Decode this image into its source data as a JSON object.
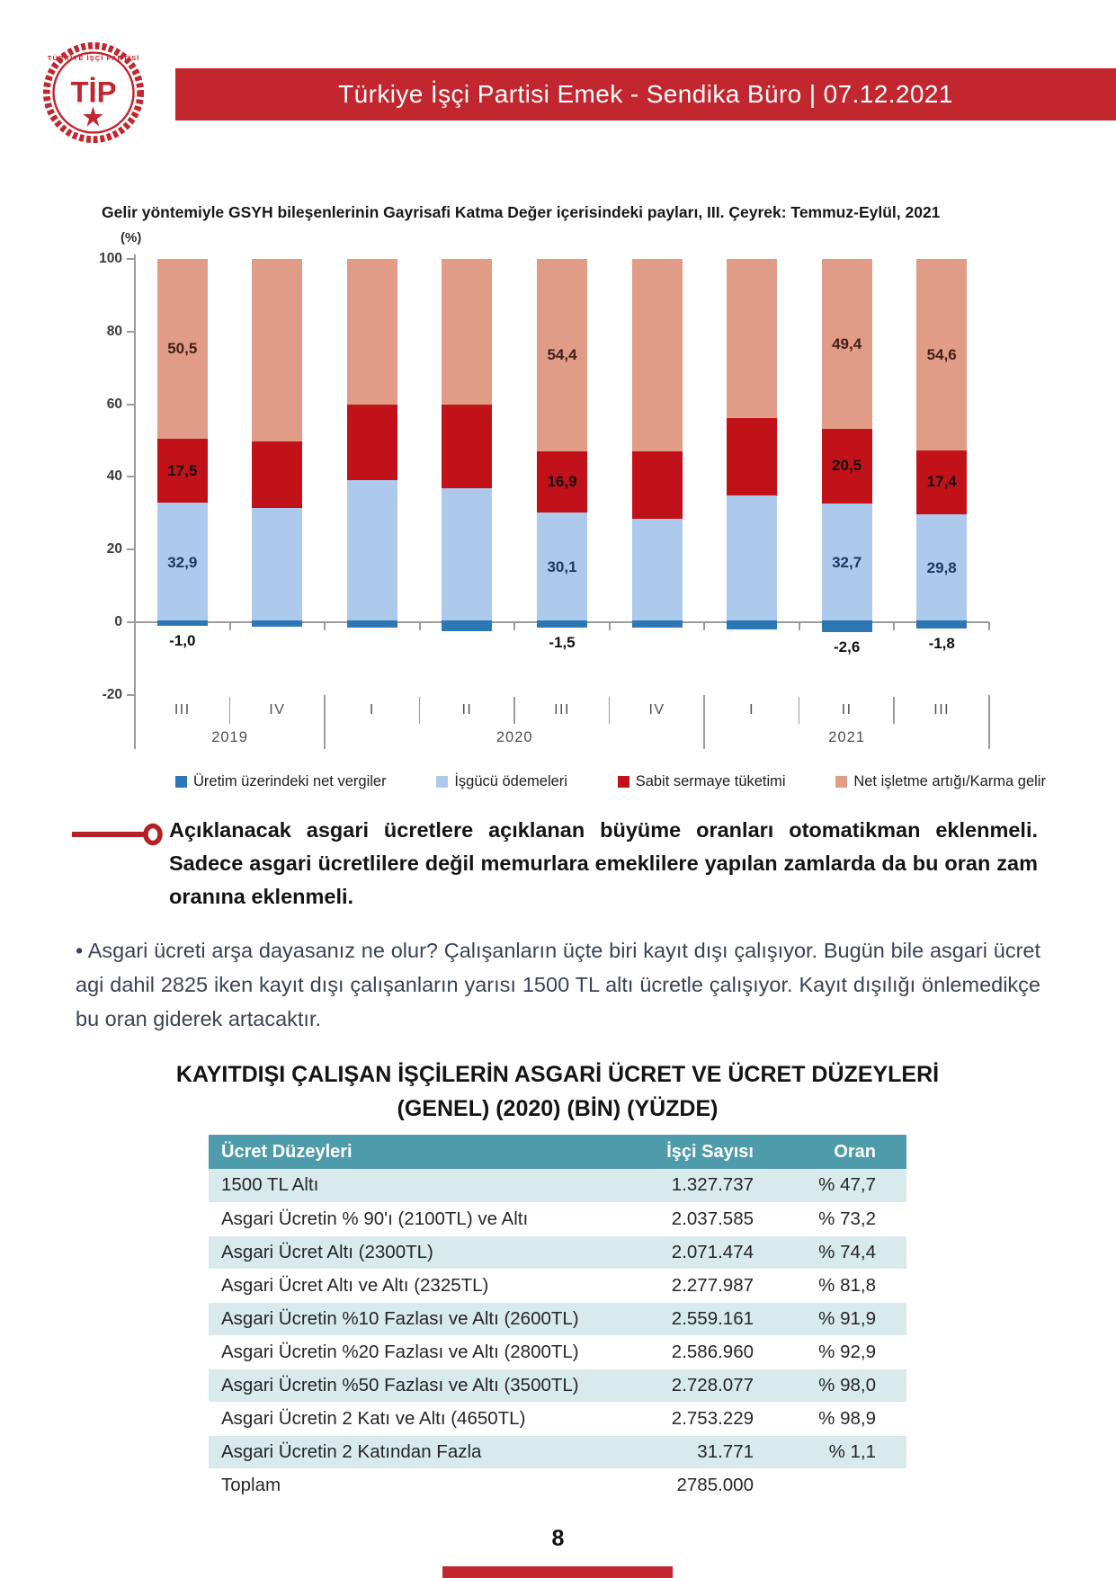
{
  "header": {
    "title": "Türkiye İşçi Partisi Emek - Sendika Büro | 07.12.2021",
    "logo_text": "TİP",
    "bar_color": "#c2262e"
  },
  "chart_data": {
    "type": "bar",
    "stacked": true,
    "title": "Gelir yöntemiyle GSYH bileşenlerinin Gayrisafi Katma Değer içerisindeki payları, III. Çeyrek: Temmuz-Eylül, 2021",
    "y_unit_label": "(%)",
    "ylim": [
      -20,
      100
    ],
    "yticks": [
      100,
      80,
      60,
      40,
      20,
      0,
      -20
    ],
    "grid": false,
    "legend_position": "bottom",
    "categories": [
      "III",
      "IV",
      "I",
      "II",
      "III",
      "IV",
      "I",
      "II",
      "III"
    ],
    "year_groups": [
      {
        "label": "2019",
        "span": 2
      },
      {
        "label": "2020",
        "span": 4
      },
      {
        "label": "2021",
        "span": 3
      }
    ],
    "series": [
      {
        "name": "Üretim üzerindeki net vergiler",
        "color": "#2e77b5",
        "label_color": "#111111",
        "values": [
          -1.0,
          -1.2,
          -1.5,
          -2.4,
          -1.5,
          -1.5,
          -2.0,
          -2.6,
          -1.8
        ],
        "labels": [
          "-1,0",
          null,
          null,
          null,
          "-1,5",
          null,
          null,
          "-2,6",
          "-1,8"
        ]
      },
      {
        "name": "İşgücü ödemeleri",
        "color": "#adc9eb",
        "label_color": "#1f3864",
        "values": [
          32.9,
          31.5,
          39.0,
          37.0,
          30.1,
          28.5,
          35.0,
          32.7,
          29.8
        ],
        "labels": [
          "32,9",
          null,
          null,
          null,
          "30,1",
          null,
          null,
          "32,7",
          "29,8"
        ]
      },
      {
        "name": "Sabit sermaye tüketimi",
        "color": "#c1121a",
        "label_color": "#111111",
        "values": [
          17.5,
          18.2,
          21.0,
          23.0,
          16.9,
          18.5,
          21.3,
          20.5,
          17.4
        ],
        "labels": [
          "17,5",
          null,
          null,
          null,
          "16,9",
          null,
          null,
          "20,5",
          "17,4"
        ]
      },
      {
        "name": "Net işletme artığı/Karma gelir",
        "color": "#e09c86",
        "label_color": "#44201b",
        "values": [
          50.5,
          50.3,
          40.0,
          40.0,
          54.4,
          53.0,
          43.7,
          49.4,
          54.6
        ],
        "labels": [
          "50,5",
          null,
          null,
          null,
          "54,4",
          null,
          null,
          "49,4",
          "54,6"
        ]
      }
    ]
  },
  "callout": {
    "text": "Açıklanacak asgari ücretlere açıklanan büyüme oranları otomatikman eklenmeli. Sadece asgari ücretlilere değil memurlara emeklilere yapılan zamlarda da bu oran zam oranına eklenmeli."
  },
  "paragraph": {
    "text": "• Asgari ücreti arşa dayasanız ne olur? Çalışanların üçte biri kayıt dışı çalışıyor. Bugün bile asgari ücret agi dahil 2825 iken kayıt dışı çalışanların yarısı 1500 TL altı ücretle çalışıyor. Kayıt dışılığı önlemedikçe bu oran giderek artacaktır."
  },
  "table": {
    "title_line1": "KAYITDIŞI ÇALIŞAN İŞÇİLERİN ASGARİ ÜCRET VE ÜCRET DÜZEYLERİ",
    "title_line2": "(GENEL) (2020) (BİN) (YÜZDE)",
    "header": [
      "Ücret Düzeyleri",
      "İşçi Sayısı",
      "Oran"
    ],
    "header_bg": "#4e9cab",
    "alt_row_bg": "#d8eaeb",
    "rows": [
      [
        "1500 TL Altı",
        "1.327.737",
        "% 47,7"
      ],
      [
        "Asgari Ücretin % 90'ı (2100TL) ve Altı",
        "2.037.585",
        "% 73,2"
      ],
      [
        "Asgari Ücret Altı (2300TL)",
        "2.071.474",
        "% 74,4"
      ],
      [
        "Asgari Ücret Altı ve Altı (2325TL)",
        "2.277.987",
        "% 81,8"
      ],
      [
        "Asgari Ücretin %10 Fazlası ve Altı (2600TL)",
        "2.559.161",
        "% 91,9"
      ],
      [
        "Asgari Ücretin %20 Fazlası ve Altı (2800TL)",
        "2.586.960",
        "% 92,9"
      ],
      [
        "Asgari Ücretin %50 Fazlası ve Altı (3500TL)",
        "2.728.077",
        "% 98,0"
      ],
      [
        "Asgari Ücretin 2 Katı ve Altı (4650TL)",
        "2.753.229",
        "% 98,9"
      ],
      [
        "Asgari Ücretin 2 Katından Fazla",
        "31.771",
        "% 1,1"
      ],
      [
        "Toplam",
        "2785.000",
        ""
      ]
    ]
  },
  "footer": {
    "page_number": "8"
  }
}
